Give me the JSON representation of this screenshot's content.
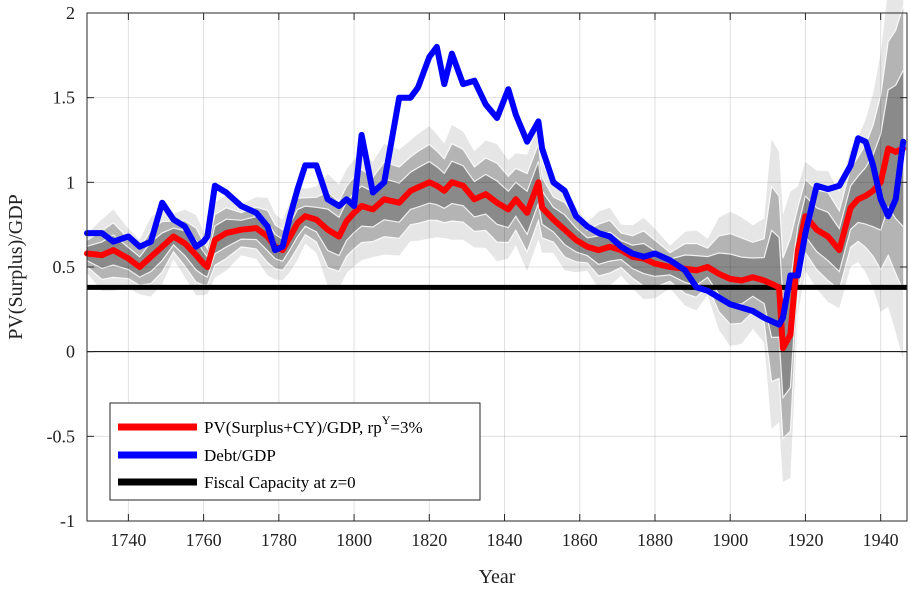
{
  "chart_data": {
    "type": "line",
    "title": "",
    "xlabel": "Year",
    "ylabel": "PV(Surplus)/GDP",
    "xlim": [
      1729,
      1947
    ],
    "ylim": [
      -1,
      2
    ],
    "grid": true,
    "legend_position": "bottom-left",
    "x_ticks": [
      1740,
      1760,
      1780,
      1800,
      1820,
      1840,
      1860,
      1880,
      1900,
      1920,
      1940
    ],
    "y_ticks": [
      -1,
      -0.5,
      0,
      0.5,
      1,
      1.5,
      2
    ],
    "y_tick_labels": [
      "-1",
      "-0.5",
      "0",
      "0.5",
      "1",
      "1.5",
      "2"
    ],
    "x": [
      1729,
      1733,
      1736,
      1740,
      1743,
      1746,
      1749,
      1752,
      1755,
      1758,
      1760,
      1761,
      1763,
      1766,
      1770,
      1774,
      1777,
      1779,
      1781,
      1783,
      1785,
      1787,
      1790,
      1793,
      1796,
      1798,
      1800,
      1802,
      1805,
      1808,
      1812,
      1815,
      1817,
      1820,
      1822,
      1824,
      1826,
      1829,
      1832,
      1835,
      1838,
      1841,
      1843,
      1846,
      1849,
      1850,
      1853,
      1856,
      1859,
      1862,
      1865,
      1868,
      1871,
      1874,
      1877,
      1880,
      1884,
      1888,
      1891,
      1894,
      1897,
      1900,
      1903,
      1906,
      1909,
      1911,
      1913,
      1914,
      1916,
      1918,
      1920,
      1923,
      1926,
      1929,
      1932,
      1934,
      1936,
      1938,
      1940,
      1942,
      1944,
      1946
    ],
    "series": [
      {
        "name": "PV(Surplus+CY)/GDP, rp",
        "name_superscript": "Y",
        "name_suffix": "=3%",
        "color": "#ff0000",
        "values": [
          0.58,
          0.57,
          0.6,
          0.55,
          0.5,
          0.56,
          0.62,
          0.68,
          0.64,
          0.57,
          0.52,
          0.5,
          0.66,
          0.7,
          0.72,
          0.73,
          0.68,
          0.62,
          0.6,
          0.68,
          0.76,
          0.8,
          0.78,
          0.72,
          0.68,
          0.77,
          0.82,
          0.86,
          0.84,
          0.9,
          0.88,
          0.95,
          0.97,
          1.0,
          0.98,
          0.95,
          1.0,
          0.98,
          0.9,
          0.93,
          0.88,
          0.84,
          0.9,
          0.82,
          1.0,
          0.85,
          0.78,
          0.72,
          0.66,
          0.62,
          0.6,
          0.62,
          0.6,
          0.56,
          0.55,
          0.52,
          0.5,
          0.49,
          0.48,
          0.5,
          0.46,
          0.43,
          0.42,
          0.44,
          0.42,
          0.4,
          0.38,
          0.02,
          0.1,
          0.6,
          0.8,
          0.72,
          0.68,
          0.6,
          0.85,
          0.9,
          0.92,
          0.95,
          1.0,
          1.2,
          1.18,
          1.2
        ]
      },
      {
        "name": "Debt/GDP",
        "color": "#0000ff",
        "values": [
          0.7,
          0.7,
          0.65,
          0.68,
          0.62,
          0.65,
          0.88,
          0.78,
          0.74,
          0.62,
          0.65,
          0.68,
          0.98,
          0.94,
          0.86,
          0.82,
          0.74,
          0.6,
          0.62,
          0.8,
          0.96,
          1.1,
          1.1,
          0.9,
          0.86,
          0.9,
          0.86,
          1.28,
          0.94,
          1.0,
          1.5,
          1.5,
          1.56,
          1.74,
          1.8,
          1.58,
          1.76,
          1.58,
          1.6,
          1.46,
          1.38,
          1.55,
          1.4,
          1.24,
          1.36,
          1.2,
          1.0,
          0.95,
          0.8,
          0.74,
          0.7,
          0.68,
          0.62,
          0.58,
          0.56,
          0.58,
          0.54,
          0.48,
          0.38,
          0.36,
          0.32,
          0.28,
          0.26,
          0.24,
          0.2,
          0.18,
          0.16,
          0.2,
          0.45,
          0.45,
          0.7,
          0.98,
          0.96,
          0.98,
          1.1,
          1.26,
          1.24,
          1.1,
          0.9,
          0.8,
          0.9,
          1.24
        ]
      },
      {
        "name": "Fiscal Capacity at z=0",
        "color": "#000000",
        "constant": 0.38
      }
    ],
    "confidence_bands": {
      "colors": [
        "#e6e6e6",
        "#b4b4b4",
        "#8a8a8a"
      ],
      "inner_lines_color": "#ffffff"
    }
  }
}
